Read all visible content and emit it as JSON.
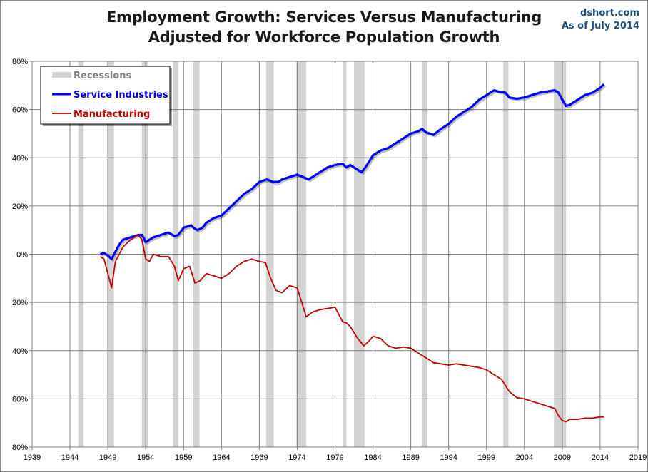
{
  "header": {
    "title_line1": "Employment Growth: Services Versus Manufacturing",
    "title_line2": "Adjusted for Workforce Population Growth",
    "source_line1": "dshort.com",
    "source_line2": "As of July 2014"
  },
  "colors": {
    "services": "#0000ff",
    "manufacturing": "#c00000",
    "recession": "#d3d3d3",
    "grid": "#808080"
  },
  "chart_data": {
    "type": "line",
    "title": "Employment Growth: Services Versus Manufacturing",
    "subtitle": "Adjusted for Workforce Population Growth",
    "xlim": [
      1939,
      2019
    ],
    "ylim": [
      -80,
      80
    ],
    "x_ticks": [
      "1939",
      "1944",
      "1949",
      "1954",
      "1959",
      "1964",
      "1969",
      "1974",
      "1979",
      "1984",
      "1989",
      "1994",
      "1999",
      "2004",
      "2009",
      "2014",
      "2019"
    ],
    "y_ticks": [
      {
        "value": 80,
        "label": "80%"
      },
      {
        "value": 60,
        "label": "60%"
      },
      {
        "value": 40,
        "label": "40%"
      },
      {
        "value": 20,
        "label": "20%"
      },
      {
        "value": 0,
        "label": "0%"
      },
      {
        "value": -20,
        "label": "20%"
      },
      {
        "value": -40,
        "label": "40%"
      },
      {
        "value": -60,
        "label": "60%"
      },
      {
        "value": -80,
        "label": "80%"
      }
    ],
    "grid": true,
    "legend_position": "top-left",
    "legend": [
      "Recessions",
      "Service Industries",
      "Manufacturing"
    ],
    "recessions": [
      [
        1945.1,
        1945.8
      ],
      [
        1948.9,
        1949.8
      ],
      [
        1953.5,
        1954.3
      ],
      [
        1957.6,
        1958.3
      ],
      [
        1960.3,
        1961.1
      ],
      [
        1969.9,
        1970.9
      ],
      [
        1973.9,
        1975.2
      ],
      [
        1980.0,
        1980.5
      ],
      [
        1981.5,
        1982.9
      ],
      [
        1990.5,
        1991.2
      ],
      [
        2001.2,
        2001.9
      ],
      [
        2007.9,
        2009.5
      ]
    ],
    "series": [
      {
        "name": "Service Industries",
        "x": [
          1948.0,
          1948.5,
          1949.0,
          1949.5,
          1950.0,
          1950.5,
          1951.0,
          1952.0,
          1953.0,
          1953.5,
          1954.0,
          1954.5,
          1955.0,
          1956.0,
          1957.0,
          1957.8,
          1958.3,
          1959.0,
          1960.0,
          1960.3,
          1960.8,
          1961.5,
          1962.0,
          1963.0,
          1964.0,
          1965.0,
          1966.0,
          1967.0,
          1968.0,
          1969.0,
          1970.0,
          1970.8,
          1971.5,
          1972.0,
          1973.0,
          1974.0,
          1974.8,
          1975.5,
          1976.0,
          1977.0,
          1978.0,
          1979.0,
          1980.0,
          1980.5,
          1981.0,
          1981.5,
          1982.5,
          1983.0,
          1984.0,
          1985.0,
          1986.0,
          1987.0,
          1988.0,
          1989.0,
          1990.0,
          1990.5,
          1991.0,
          1991.5,
          1992.0,
          1993.0,
          1994.0,
          1995.0,
          1996.0,
          1997.0,
          1998.0,
          1999.0,
          2000.0,
          2000.5,
          2001.5,
          2002.0,
          2003.0,
          2004.0,
          2005.0,
          2006.0,
          2007.0,
          2008.0,
          2008.5,
          2009.0,
          2009.5,
          2010.0,
          2011.0,
          2012.0,
          2013.0,
          2014.0,
          2014.5
        ],
        "values": [
          0,
          0.5,
          -0.5,
          -2,
          1,
          4,
          6,
          7,
          8,
          8,
          5,
          6,
          7,
          8,
          9,
          7.5,
          8,
          11,
          12,
          11,
          10,
          11,
          13,
          15,
          16,
          19,
          22,
          25,
          27,
          30,
          31,
          30,
          30,
          31,
          32,
          33,
          32,
          31,
          32,
          34,
          36,
          37,
          37.5,
          36,
          37,
          36,
          34,
          36,
          41,
          43,
          44,
          46,
          48,
          50,
          51,
          52,
          50.5,
          50,
          49.5,
          52,
          54,
          57,
          59,
          61,
          64,
          66,
          68,
          67.5,
          67,
          65,
          64.5,
          65,
          66,
          67,
          67.5,
          68,
          67,
          64,
          61.5,
          62,
          64,
          66,
          67,
          69,
          70.5
        ]
      },
      {
        "name": "Manufacturing",
        "x": [
          1948.0,
          1948.5,
          1949.0,
          1949.5,
          1950.0,
          1951.0,
          1952.0,
          1953.0,
          1953.5,
          1954.0,
          1954.5,
          1955.0,
          1956.0,
          1957.0,
          1957.8,
          1958.3,
          1959.0,
          1959.8,
          1960.5,
          1961.2,
          1962.0,
          1963.0,
          1964.0,
          1965.0,
          1966.0,
          1967.0,
          1968.0,
          1969.0,
          1969.8,
          1970.5,
          1971.2,
          1972.0,
          1973.0,
          1974.0,
          1974.6,
          1975.2,
          1976.0,
          1977.0,
          1978.0,
          1979.0,
          1980.0,
          1980.5,
          1981.0,
          1982.0,
          1982.8,
          1983.5,
          1984.0,
          1985.0,
          1986.0,
          1987.0,
          1988.0,
          1989.0,
          1990.0,
          1991.0,
          1992.0,
          1993.0,
          1994.0,
          1995.0,
          1996.0,
          1997.0,
          1998.0,
          1999.0,
          2000.0,
          2001.0,
          2002.0,
          2003.0,
          2004.0,
          2005.0,
          2006.0,
          2007.0,
          2008.0,
          2008.5,
          2009.0,
          2009.5,
          2010.0,
          2011.0,
          2012.0,
          2013.0,
          2014.0,
          2014.5
        ],
        "values": [
          -1,
          -2,
          -8,
          -14,
          -3,
          3,
          6,
          8,
          6,
          -2,
          -3,
          0,
          -1,
          -1,
          -5,
          -11,
          -6,
          -5,
          -12,
          -11,
          -8,
          -9,
          -10,
          -8,
          -5,
          -3,
          -2,
          -3,
          -3.5,
          -10,
          -15,
          -16,
          -13,
          -14,
          -20,
          -26,
          -24,
          -23,
          -22.5,
          -22,
          -28,
          -28.5,
          -30,
          -35,
          -38,
          -36,
          -34,
          -35,
          -38,
          -39,
          -38.5,
          -39,
          -41,
          -43,
          -45,
          -45.5,
          -46,
          -45.5,
          -46,
          -46.5,
          -47,
          -48,
          -50,
          -52,
          -57,
          -59.5,
          -60,
          -61,
          -62,
          -63,
          -64,
          -67,
          -69,
          -69.5,
          -68.5,
          -68.5,
          -68,
          -68,
          -67.5,
          -67.5
        ]
      }
    ]
  }
}
